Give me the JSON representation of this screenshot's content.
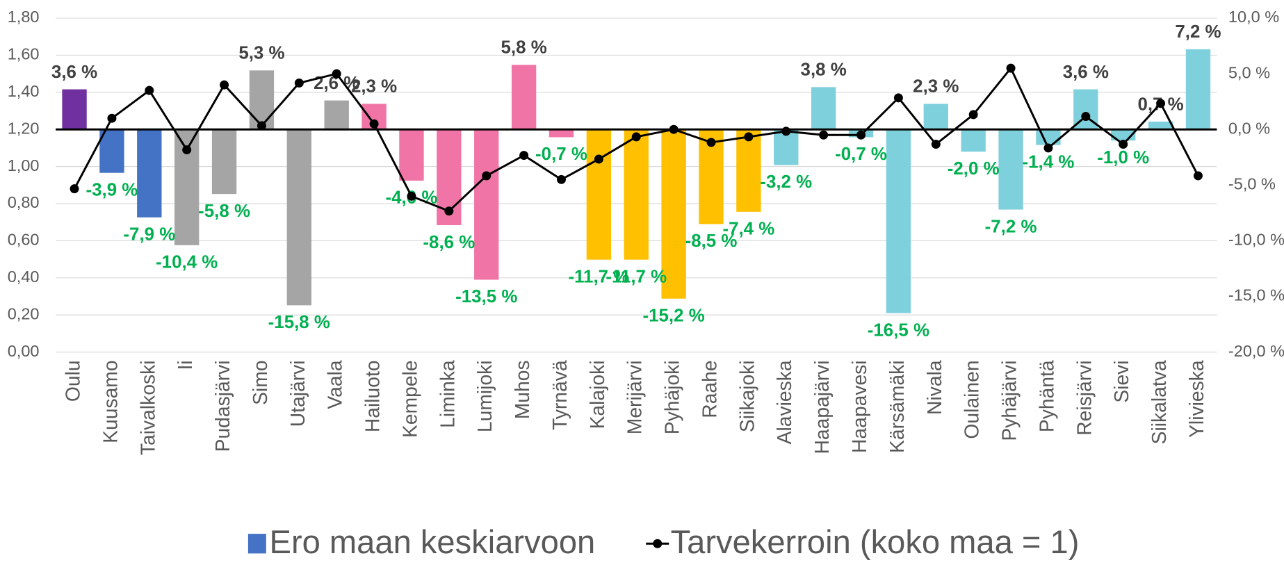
{
  "chart_data": {
    "type": "bar",
    "categories": [
      "Oulu",
      "Kuusamo",
      "Taivalkoski",
      "Ii",
      "Pudasjärvi",
      "Simo",
      "Utajärvi",
      "Vaala",
      "Hailuoto",
      "Kempele",
      "Liminka",
      "Lumijoki",
      "Muhos",
      "Tyrnävä",
      "Kalajoki",
      "Merijärvi",
      "Pyhäjoki",
      "Raahe",
      "Siikajoki",
      "Alavieska",
      "Haapajärvi",
      "Haapavesi",
      "Kärsämäki",
      "Nivala",
      "Oulainen",
      "Pyhäjärvi",
      "Pyhäntä",
      "Reisjärvi",
      "Sievi",
      "Siikalatva",
      "Ylivieska"
    ],
    "series": [
      {
        "name": "Ero maan keskiarvoon",
        "type": "bar",
        "axis": "y2",
        "color": "#4472c4",
        "colors": [
          "#7030a0",
          "#4472c4",
          "#4472c4",
          "#a5a5a5",
          "#a5a5a5",
          "#a5a5a5",
          "#a5a5a5",
          "#a5a5a5",
          "#f075a6",
          "#f075a6",
          "#f075a6",
          "#f075a6",
          "#f075a6",
          "#f075a6",
          "#ffc000",
          "#ffc000",
          "#ffc000",
          "#ffc000",
          "#ffc000",
          "#7fd0dd",
          "#7fd0dd",
          "#7fd0dd",
          "#7fd0dd",
          "#7fd0dd",
          "#7fd0dd",
          "#7fd0dd",
          "#7fd0dd",
          "#7fd0dd",
          "#7fd0dd",
          "#7fd0dd",
          "#7fd0dd"
        ],
        "values": [
          3.6,
          -3.9,
          -7.9,
          -10.4,
          -5.8,
          5.3,
          -15.8,
          2.6,
          2.3,
          -4.6,
          -8.6,
          -13.5,
          5.8,
          -0.7,
          -11.7,
          -11.7,
          -15.2,
          -8.5,
          -7.4,
          -3.2,
          3.8,
          -0.7,
          -16.5,
          2.3,
          -2.0,
          -7.2,
          -1.4,
          3.6,
          -1.0,
          0.7,
          7.2
        ],
        "value_labels": [
          "3,6 %",
          "-3,9 %",
          "-7,9 %",
          "-10,4 %",
          "-5,8 %",
          "5,3 %",
          "-15,8 %",
          "2,6 %",
          "2,3 %",
          "-4,6 %",
          "-8,6 %",
          "-13,5 %",
          "5,8 %",
          "-0,7 %",
          "-11,7 %",
          "-11,7 %",
          "-15,2 %",
          "-8,5 %",
          "-7,4 %",
          "-3,2 %",
          "3,8 %",
          "-0,7 %",
          "-16,5 %",
          "2,3 %",
          "-2,0 %",
          "-7,2 %",
          "-1,4 %",
          "3,6 %",
          "-1,0 %",
          "0,7 %",
          "7,2 %"
        ]
      },
      {
        "name": "Tarvekerroin (koko maa = 1)",
        "type": "line",
        "color": "#000000",
        "values": [
          0.88,
          1.26,
          1.41,
          1.09,
          1.44,
          1.22,
          1.45,
          1.5,
          1.23,
          0.84,
          0.76,
          0.95,
          1.06,
          0.93,
          1.04,
          1.16,
          1.2,
          1.13,
          1.16,
          1.19,
          1.17,
          1.17,
          1.37,
          1.12,
          1.28,
          1.53,
          1.1,
          1.27,
          1.12,
          1.34,
          0.95
        ]
      }
    ],
    "ylim": [
      0,
      1.8
    ],
    "yticks": [
      {
        "value": 0,
        "label": "0,00"
      },
      {
        "value": 0.2,
        "label": "0,20"
      },
      {
        "value": 0.4,
        "label": "0,40"
      },
      {
        "value": 0.6,
        "label": "0,60"
      },
      {
        "value": 0.8,
        "label": "0,80"
      },
      {
        "value": 1.0,
        "label": "1,00"
      },
      {
        "value": 1.2,
        "label": "1,20"
      },
      {
        "value": 1.4,
        "label": "1,40"
      },
      {
        "value": 1.6,
        "label": "1,60"
      },
      {
        "value": 1.8,
        "label": "1,80"
      }
    ],
    "y2lim": [
      -20,
      10
    ],
    "y2ticks": [
      {
        "value": -20,
        "label": "-20,0 %"
      },
      {
        "value": -15,
        "label": "-15,0 %"
      },
      {
        "value": -10,
        "label": "-10,0 %"
      },
      {
        "value": -5,
        "label": "-5,0 %"
      },
      {
        "value": 0,
        "label": "0,0 %"
      },
      {
        "value": 5,
        "label": "5,0 %"
      },
      {
        "value": 10,
        "label": "10,0 %"
      }
    ],
    "grid": true
  }
}
